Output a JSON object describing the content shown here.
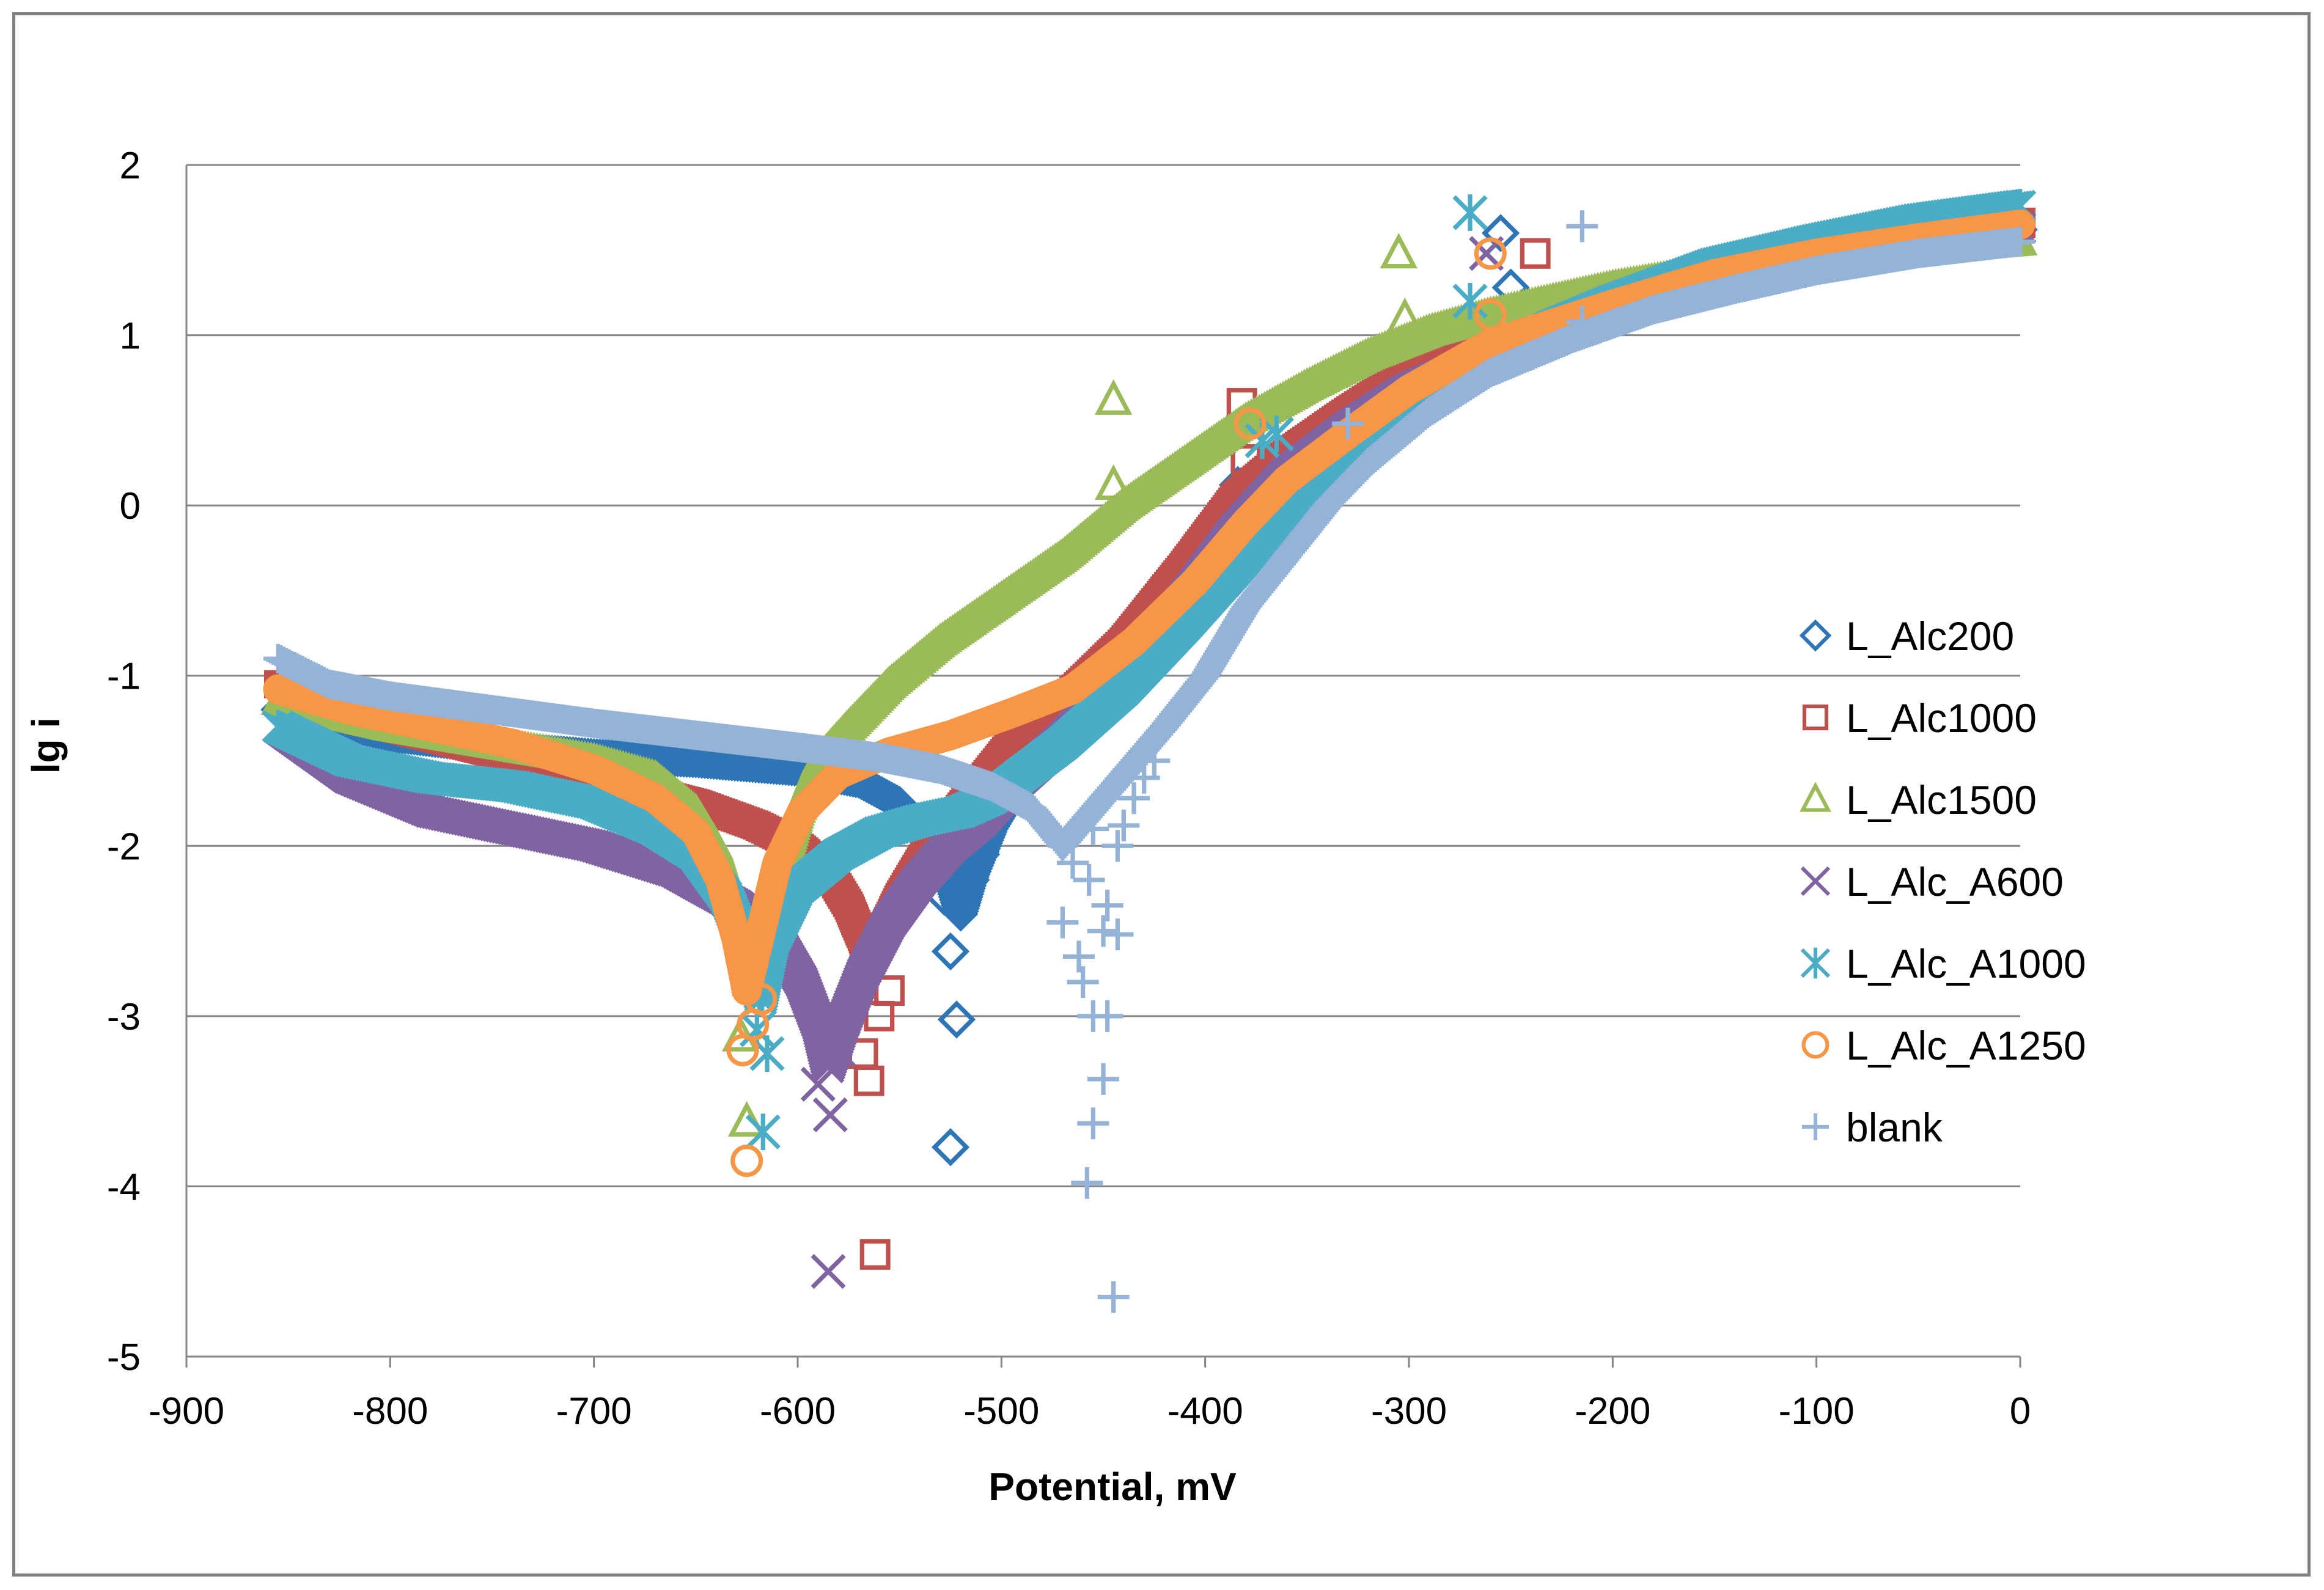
{
  "chart_data": {
    "type": "scatter",
    "title": "",
    "xlabel": "Potential, mV",
    "ylabel": "lg i",
    "xlim": [
      -900,
      0
    ],
    "ylim": [
      -5,
      2
    ],
    "xticks": [
      -900,
      -800,
      -700,
      -600,
      -500,
      -400,
      -300,
      -200,
      -100,
      0
    ],
    "yticks": [
      -5,
      -4,
      -3,
      -2,
      -1,
      0,
      1,
      2
    ],
    "grid": "horizontal",
    "legend_position": "right",
    "series": [
      {
        "name": "L_Alc200",
        "marker": "diamond",
        "color": "#2E75B6",
        "corrosion_potential": -520,
        "curve": [
          [
            -855,
            -1.2
          ],
          [
            -800,
            -1.35
          ],
          [
            -750,
            -1.42
          ],
          [
            -700,
            -1.47
          ],
          [
            -650,
            -1.5
          ],
          [
            -600,
            -1.55
          ],
          [
            -570,
            -1.62
          ],
          [
            -550,
            -1.75
          ],
          [
            -535,
            -1.95
          ],
          [
            -525,
            -2.2
          ],
          [
            -520,
            -2.4
          ],
          [
            -515,
            -2.2
          ],
          [
            -505,
            -1.9
          ],
          [
            -490,
            -1.6
          ],
          [
            -470,
            -1.25
          ],
          [
            -450,
            -1.0
          ],
          [
            -420,
            -0.6
          ],
          [
            -390,
            -0.15
          ],
          [
            -370,
            0.1
          ],
          [
            -350,
            0.35
          ],
          [
            -320,
            0.62
          ],
          [
            -290,
            0.85
          ],
          [
            -250,
            1.05
          ],
          [
            -200,
            1.22
          ],
          [
            -150,
            1.38
          ],
          [
            -100,
            1.48
          ],
          [
            -50,
            1.56
          ],
          [
            0,
            1.62
          ]
        ],
        "scatter": [
          [
            -525,
            -3.77
          ],
          [
            -522,
            -3.02
          ],
          [
            -525,
            -2.62
          ],
          [
            -528,
            -2.3
          ],
          [
            -515,
            -2.2
          ],
          [
            -510,
            -2.05
          ],
          [
            -384,
            0.12
          ],
          [
            -255,
            1.6
          ],
          [
            -250,
            1.28
          ]
        ]
      },
      {
        "name": "L_Alc1000",
        "marker": "square",
        "color": "#C0504D",
        "corrosion_potential": -565,
        "curve": [
          [
            -855,
            -1.05
          ],
          [
            -800,
            -1.3
          ],
          [
            -750,
            -1.45
          ],
          [
            -700,
            -1.6
          ],
          [
            -650,
            -1.75
          ],
          [
            -620,
            -1.88
          ],
          [
            -600,
            -2.0
          ],
          [
            -585,
            -2.15
          ],
          [
            -575,
            -2.35
          ],
          [
            -568,
            -2.55
          ],
          [
            -565,
            -2.7
          ],
          [
            -560,
            -2.55
          ],
          [
            -550,
            -2.3
          ],
          [
            -535,
            -2.0
          ],
          [
            -515,
            -1.7
          ],
          [
            -495,
            -1.4
          ],
          [
            -470,
            -1.15
          ],
          [
            -440,
            -0.8
          ],
          [
            -410,
            -0.35
          ],
          [
            -385,
            0.05
          ],
          [
            -360,
            0.3
          ],
          [
            -330,
            0.55
          ],
          [
            -300,
            0.78
          ],
          [
            -260,
            0.95
          ],
          [
            -200,
            1.2
          ],
          [
            -150,
            1.38
          ],
          [
            -100,
            1.5
          ],
          [
            -50,
            1.58
          ],
          [
            0,
            1.66
          ]
        ],
        "scatter": [
          [
            -562,
            -4.4
          ],
          [
            -565,
            -3.38
          ],
          [
            -568,
            -3.22
          ],
          [
            -560,
            -3.0
          ],
          [
            -555,
            -2.85
          ],
          [
            -382,
            0.6
          ],
          [
            -380,
            0.27
          ],
          [
            -238,
            1.48
          ],
          [
            0,
            1.66
          ]
        ]
      },
      {
        "name": "L_Alc1500",
        "marker": "triangle",
        "color": "#9BBB59",
        "corrosion_potential": -625,
        "curve": [
          [
            -855,
            -1.15
          ],
          [
            -800,
            -1.3
          ],
          [
            -750,
            -1.4
          ],
          [
            -700,
            -1.5
          ],
          [
            -670,
            -1.6
          ],
          [
            -650,
            -1.8
          ],
          [
            -640,
            -2.0
          ],
          [
            -632,
            -2.3
          ],
          [
            -627,
            -2.5
          ],
          [
            -624,
            -2.8
          ],
          [
            -615,
            -2.4
          ],
          [
            -600,
            -1.8
          ],
          [
            -590,
            -1.5
          ],
          [
            -575,
            -1.3
          ],
          [
            -555,
            -1.05
          ],
          [
            -530,
            -0.8
          ],
          [
            -500,
            -0.55
          ],
          [
            -470,
            -0.3
          ],
          [
            -440,
            0.0
          ],
          [
            -410,
            0.25
          ],
          [
            -380,
            0.5
          ],
          [
            -350,
            0.7
          ],
          [
            -320,
            0.88
          ],
          [
            -290,
            1.02
          ],
          [
            -260,
            1.12
          ],
          [
            -200,
            1.28
          ],
          [
            -150,
            1.38
          ],
          [
            -100,
            1.45
          ],
          [
            -50,
            1.5
          ],
          [
            0,
            1.55
          ]
        ],
        "scatter": [
          [
            -625,
            -3.62
          ],
          [
            -628,
            -3.12
          ],
          [
            -445,
            0.62
          ],
          [
            -445,
            0.12
          ],
          [
            -305,
            1.48
          ],
          [
            -302,
            1.1
          ]
        ]
      },
      {
        "name": "L_Alc_A600",
        "marker": "x",
        "color": "#8064A2",
        "corrosion_potential": -585,
        "curve": [
          [
            -855,
            -1.3
          ],
          [
            -820,
            -1.6
          ],
          [
            -780,
            -1.8
          ],
          [
            -740,
            -1.9
          ],
          [
            -700,
            -2.0
          ],
          [
            -660,
            -2.15
          ],
          [
            -630,
            -2.35
          ],
          [
            -610,
            -2.55
          ],
          [
            -598,
            -2.8
          ],
          [
            -590,
            -3.05
          ],
          [
            -585,
            -3.3
          ],
          [
            -578,
            -3.05
          ],
          [
            -568,
            -2.75
          ],
          [
            -555,
            -2.45
          ],
          [
            -540,
            -2.2
          ],
          [
            -525,
            -2.0
          ],
          [
            -510,
            -1.85
          ],
          [
            -495,
            -1.65
          ],
          [
            -470,
            -1.38
          ],
          [
            -440,
            -1.0
          ],
          [
            -410,
            -0.55
          ],
          [
            -385,
            -0.15
          ],
          [
            -360,
            0.18
          ],
          [
            -330,
            0.45
          ],
          [
            -300,
            0.68
          ],
          [
            -260,
            0.88
          ],
          [
            -200,
            1.15
          ],
          [
            -150,
            1.34
          ],
          [
            -100,
            1.47
          ],
          [
            -50,
            1.56
          ],
          [
            0,
            1.63
          ]
        ],
        "scatter": [
          [
            -585,
            -4.5
          ],
          [
            -584,
            -3.58
          ],
          [
            -590,
            -3.4
          ],
          [
            -580,
            -3.2
          ],
          [
            -578,
            -3.02
          ],
          [
            -262,
            1.48
          ]
        ]
      },
      {
        "name": "L_Alc_A1000",
        "marker": "asterisk",
        "color": "#4BACC6",
        "corrosion_potential": -617,
        "curve": [
          [
            -855,
            -1.3
          ],
          [
            -820,
            -1.5
          ],
          [
            -780,
            -1.6
          ],
          [
            -740,
            -1.65
          ],
          [
            -700,
            -1.75
          ],
          [
            -670,
            -1.9
          ],
          [
            -650,
            -2.05
          ],
          [
            -635,
            -2.3
          ],
          [
            -625,
            -2.6
          ],
          [
            -618,
            -2.9
          ],
          [
            -612,
            -2.55
          ],
          [
            -600,
            -2.25
          ],
          [
            -580,
            -2.05
          ],
          [
            -560,
            -1.92
          ],
          [
            -540,
            -1.85
          ],
          [
            -520,
            -1.8
          ],
          [
            -505,
            -1.72
          ],
          [
            -490,
            -1.58
          ],
          [
            -470,
            -1.4
          ],
          [
            -440,
            -1.08
          ],
          [
            -410,
            -0.7
          ],
          [
            -380,
            -0.3
          ],
          [
            -355,
            0.0
          ],
          [
            -330,
            0.3
          ],
          [
            -300,
            0.6
          ],
          [
            -270,
            0.8
          ],
          [
            -230,
            1.05
          ],
          [
            -200,
            1.2
          ],
          [
            -150,
            1.42
          ],
          [
            -100,
            1.56
          ],
          [
            -50,
            1.68
          ],
          [
            0,
            1.76
          ]
        ],
        "scatter": [
          [
            -617,
            -3.68
          ],
          [
            -615,
            -3.22
          ],
          [
            -620,
            -3.08
          ],
          [
            -270,
            1.72
          ],
          [
            -270,
            1.2
          ],
          [
            -365,
            0.42
          ],
          [
            -372,
            0.38
          ]
        ]
      },
      {
        "name": "L_Alc_A1250",
        "marker": "circle",
        "color": "#F79646",
        "corrosion_potential": -625,
        "curve": [
          [
            -855,
            -1.08
          ],
          [
            -820,
            -1.2
          ],
          [
            -780,
            -1.3
          ],
          [
            -740,
            -1.4
          ],
          [
            -700,
            -1.55
          ],
          [
            -670,
            -1.72
          ],
          [
            -650,
            -1.92
          ],
          [
            -638,
            -2.2
          ],
          [
            -630,
            -2.55
          ],
          [
            -625,
            -2.85
          ],
          [
            -618,
            -2.5
          ],
          [
            -610,
            -2.1
          ],
          [
            -598,
            -1.8
          ],
          [
            -580,
            -1.58
          ],
          [
            -555,
            -1.45
          ],
          [
            -525,
            -1.35
          ],
          [
            -495,
            -1.22
          ],
          [
            -465,
            -1.08
          ],
          [
            -435,
            -0.8
          ],
          [
            -405,
            -0.45
          ],
          [
            -380,
            -0.1
          ],
          [
            -360,
            0.15
          ],
          [
            -330,
            0.42
          ],
          [
            -300,
            0.68
          ],
          [
            -260,
            0.95
          ],
          [
            -200,
            1.18
          ],
          [
            -150,
            1.36
          ],
          [
            -100,
            1.48
          ],
          [
            -50,
            1.57
          ],
          [
            0,
            1.65
          ]
        ],
        "scatter": [
          [
            -625,
            -3.85
          ],
          [
            -627,
            -3.2
          ],
          [
            -622,
            -3.05
          ],
          [
            -618,
            -2.9
          ],
          [
            -378,
            0.48
          ],
          [
            -260,
            1.48
          ],
          [
            -260,
            1.12
          ]
        ]
      },
      {
        "name": "blank",
        "marker": "plus",
        "color": "#95B3D7",
        "corrosion_potential": -455,
        "curve": [
          [
            -855,
            -0.9
          ],
          [
            -830,
            -1.05
          ],
          [
            -800,
            -1.12
          ],
          [
            -750,
            -1.2
          ],
          [
            -700,
            -1.28
          ],
          [
            -650,
            -1.35
          ],
          [
            -600,
            -1.42
          ],
          [
            -560,
            -1.48
          ],
          [
            -530,
            -1.55
          ],
          [
            -505,
            -1.65
          ],
          [
            -485,
            -1.78
          ],
          [
            -470,
            -2.0
          ],
          [
            -420,
            -1.3
          ],
          [
            -400,
            -1.0
          ],
          [
            -380,
            -0.6
          ],
          [
            -360,
            -0.3
          ],
          [
            -340,
            0.0
          ],
          [
            -320,
            0.25
          ],
          [
            -290,
            0.55
          ],
          [
            -260,
            0.78
          ],
          [
            -220,
            0.98
          ],
          [
            -180,
            1.15
          ],
          [
            -140,
            1.27
          ],
          [
            -100,
            1.38
          ],
          [
            -50,
            1.48
          ],
          [
            0,
            1.55
          ]
        ],
        "scatter": [
          [
            -445,
            -4.65
          ],
          [
            -458,
            -3.98
          ],
          [
            -455,
            -3.63
          ],
          [
            -450,
            -3.37
          ],
          [
            -455,
            -3.0
          ],
          [
            -448,
            -3.0
          ],
          [
            -460,
            -2.8
          ],
          [
            -462,
            -2.65
          ],
          [
            -470,
            -2.45
          ],
          [
            -450,
            -2.5
          ],
          [
            -443,
            -2.52
          ],
          [
            -448,
            -2.35
          ],
          [
            -457,
            -2.2
          ],
          [
            -465,
            -2.1
          ],
          [
            -443,
            -2.0
          ],
          [
            -455,
            -1.9
          ],
          [
            -440,
            -1.88
          ],
          [
            -435,
            -1.72
          ],
          [
            -430,
            -1.6
          ],
          [
            -425,
            -1.5
          ],
          [
            -330,
            0.48
          ],
          [
            -215,
            1.64
          ],
          [
            -215,
            1.08
          ]
        ]
      }
    ]
  }
}
